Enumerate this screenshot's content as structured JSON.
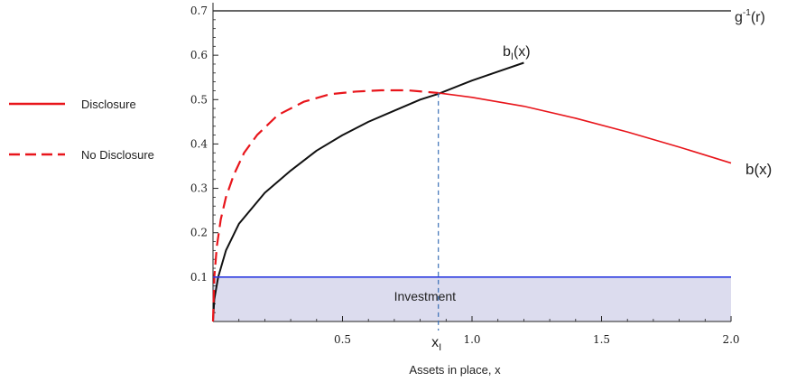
{
  "chart_data": {
    "type": "line",
    "xlabel": "Assets in place, x",
    "xlim": [
      0,
      2.0
    ],
    "ylim": [
      0,
      0.7
    ],
    "xticks": [
      0.5,
      1.0,
      1.5,
      2.0
    ],
    "xtick_labels": [
      "0.5",
      "1.0",
      "1.5",
      "2.0"
    ],
    "yticks": [
      0.1,
      0.2,
      0.3,
      0.4,
      0.5,
      0.6,
      0.7
    ],
    "ytick_labels": [
      "0.1",
      "0.2",
      "0.3",
      "0.4",
      "0.5",
      "0.6",
      "0.7"
    ],
    "legend": {
      "placement": "left",
      "items": [
        {
          "label": "Disclosure",
          "style": "solid",
          "color": "#e8151b"
        },
        {
          "label": "No Disclosure",
          "style": "dashed",
          "color": "#e8151b"
        }
      ]
    },
    "series": [
      {
        "name": "g",
        "label_prefix": "g",
        "label_sup": "-1",
        "label_suffix": "(r)",
        "color": "#333333",
        "style": "solid",
        "x": [
          0,
          2.0
        ],
        "y": [
          0.7,
          0.7
        ]
      },
      {
        "name": "bI",
        "label_base": "b",
        "label_sub": "I",
        "label_suffix": "(x)",
        "color": "#111111",
        "style": "solid",
        "x": [
          0,
          0.005,
          0.02,
          0.05,
          0.1,
          0.2,
          0.3,
          0.4,
          0.5,
          0.6,
          0.7,
          0.8,
          0.87,
          1.0,
          1.1,
          1.2
        ],
        "y": [
          0,
          0.05,
          0.1,
          0.16,
          0.22,
          0.29,
          0.34,
          0.385,
          0.42,
          0.45,
          0.475,
          0.5,
          0.513,
          0.543,
          0.563,
          0.583
        ]
      },
      {
        "name": "b(x)",
        "color": "#e8151b",
        "style": "solid",
        "x": [
          0.87,
          1.0,
          1.2,
          1.4,
          1.6,
          1.8,
          2.0
        ],
        "y": [
          0.515,
          0.505,
          0.485,
          0.458,
          0.427,
          0.393,
          0.357
        ]
      },
      {
        "name": "No Disclosure",
        "color": "#e8151b",
        "style": "dashed",
        "x": [
          0,
          0.005,
          0.015,
          0.03,
          0.05,
          0.08,
          0.12,
          0.17,
          0.25,
          0.35,
          0.45,
          0.55,
          0.65,
          0.75,
          0.87
        ],
        "y": [
          0,
          0.1,
          0.17,
          0.23,
          0.28,
          0.33,
          0.38,
          0.42,
          0.465,
          0.495,
          0.512,
          0.518,
          0.521,
          0.521,
          0.515
        ]
      },
      {
        "name": "Investment threshold",
        "color": "#2b3be0",
        "style": "solid",
        "x": [
          0,
          2.0
        ],
        "y": [
          0.1,
          0.1
        ]
      }
    ],
    "annotations": {
      "region_label": "Investment",
      "region_fill": "#dcdcee",
      "vline_x": 0.87,
      "vline_color": "#3a6fb5",
      "vline_label_base": "x",
      "vline_label_sub": "I"
    }
  }
}
